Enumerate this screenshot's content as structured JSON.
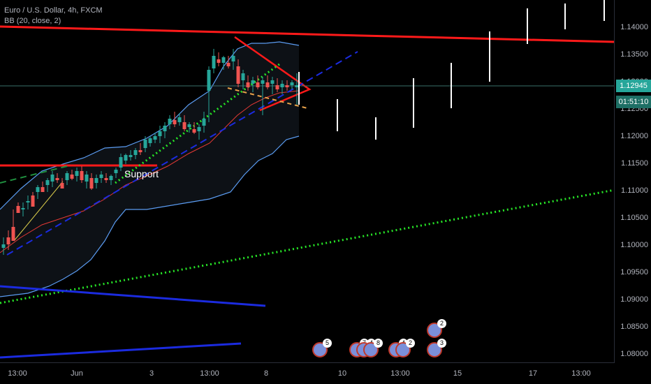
{
  "legend": {
    "symbol": "Euro / U.S. Dollar, 4h, FXCM",
    "indicator": "BB (20, close, 2)"
  },
  "annotation": {
    "support_label": "Support"
  },
  "price_axis": {
    "ticks": [
      "1.14000",
      "1.13500",
      "1.13000",
      "1.12500",
      "1.12000",
      "1.11500",
      "1.11000",
      "1.10500",
      "1.10000",
      "1.09500",
      "1.09000",
      "1.08500",
      "1.08000"
    ],
    "current_price": "1.12945",
    "countdown": "01:51:10",
    "current_price_color": "#26a69a"
  },
  "time_axis": {
    "ticks": [
      "13:00",
      "Jun",
      "3",
      "13:00",
      "8",
      "10",
      "13:00",
      "15",
      "17",
      "13:00"
    ]
  },
  "events": [
    {
      "count": "5"
    },
    {
      "count": "7"
    },
    {
      "count": "4"
    },
    {
      "count": "8"
    },
    {
      "count": "4"
    },
    {
      "count": "2"
    },
    {
      "count": "2"
    },
    {
      "count": "3"
    }
  ],
  "colors": {
    "up": "#26a69a",
    "down": "#ef5350",
    "bb_band": "#5b9cf2",
    "bb_mid": "#e53935",
    "trend_red": "#ff1a1a",
    "trend_blue": "#1b2bdf",
    "dotted_green": "#27e527"
  }
}
